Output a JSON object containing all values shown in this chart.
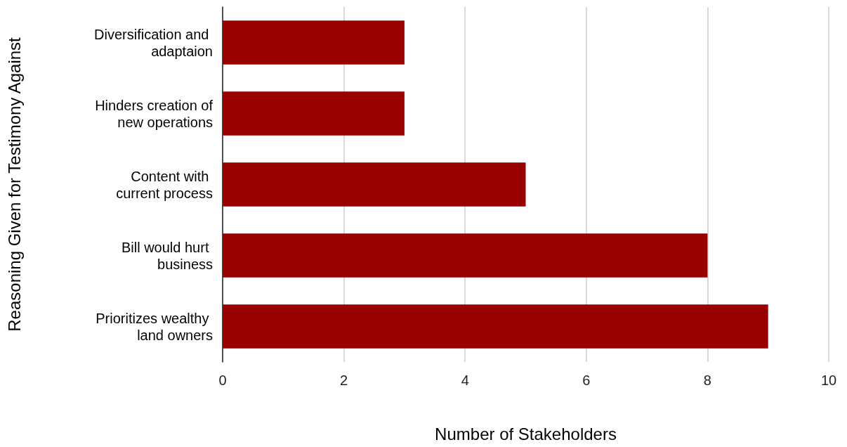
{
  "chart_data": {
    "type": "bar",
    "orientation": "horizontal",
    "xlabel": "Number of Stakeholders",
    "ylabel": "Reasoning Given for Testimony Against",
    "categories": [
      "Diversification and adaptaion",
      "Hinders creation of new operations",
      "Content with current process",
      "Bill would hurt business",
      "Prioritizes wealthy land owners"
    ],
    "values": [
      3,
      3,
      5,
      8,
      9
    ],
    "color": "#990000",
    "xlim": [
      0,
      10
    ],
    "xticks": [
      0,
      2,
      4,
      6,
      8,
      10
    ],
    "grid": "x"
  }
}
